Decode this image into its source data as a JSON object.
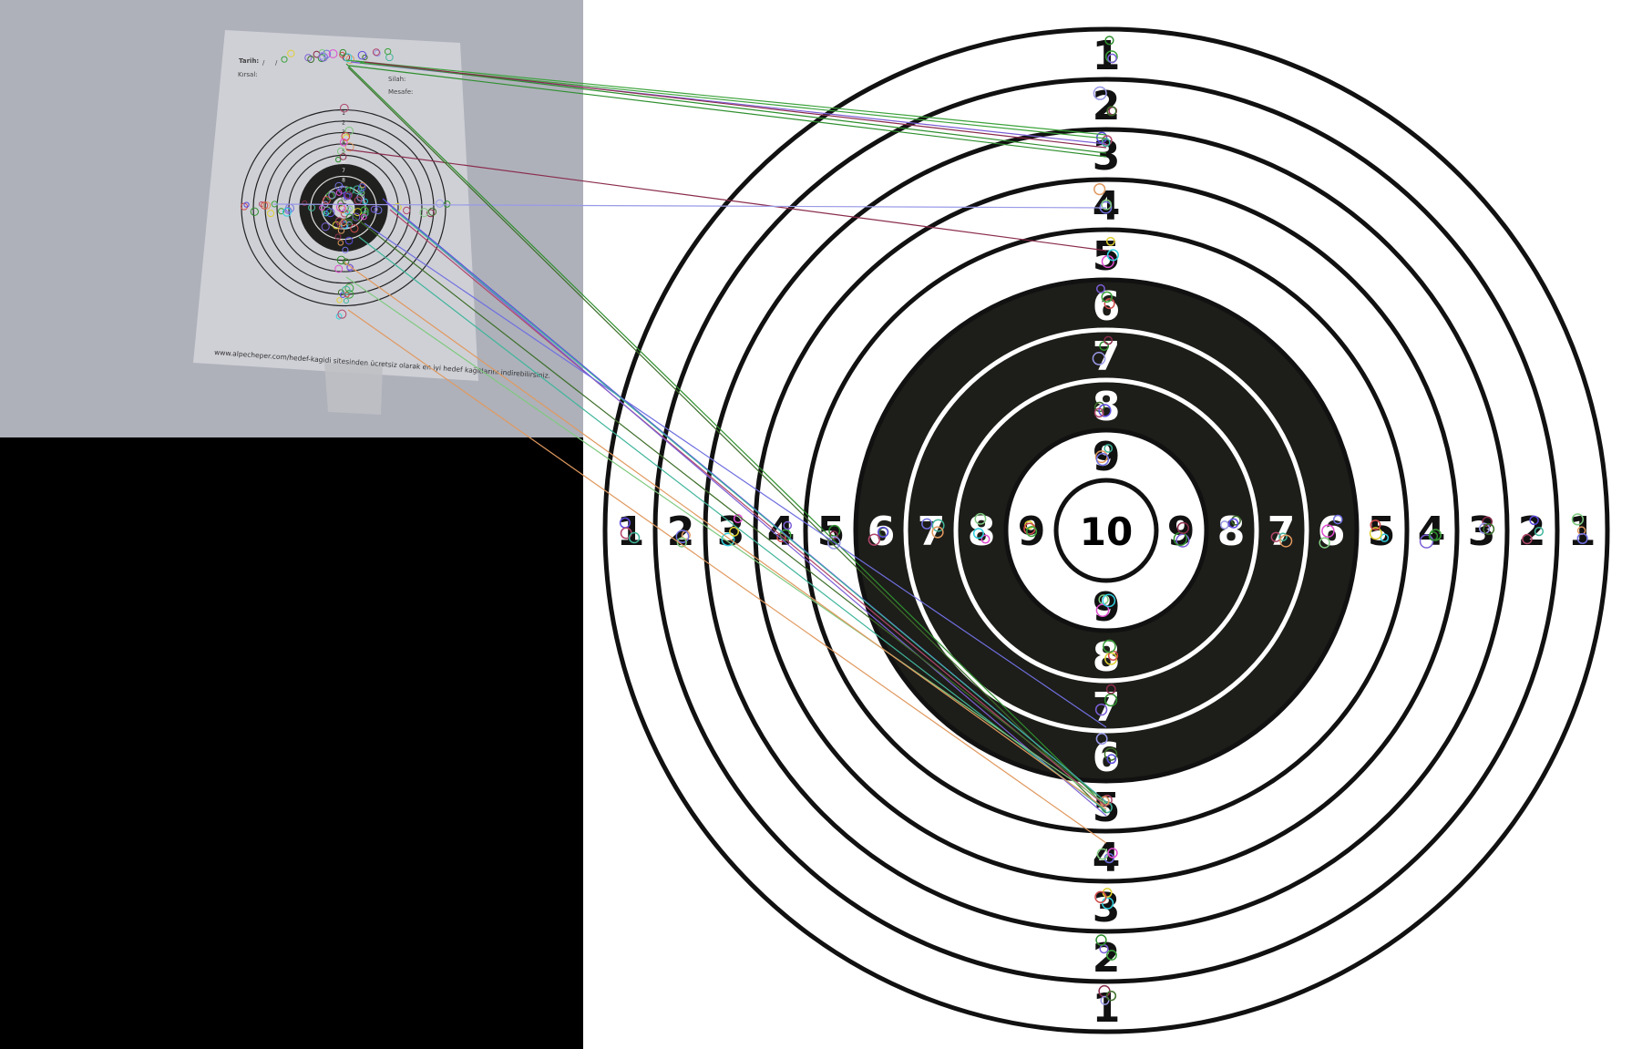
{
  "photo": {
    "header_fields": [
      "Tarih:",
      "/",
      "/",
      "Kırsal:",
      "Silah:",
      "Mesafe:"
    ],
    "footer_text": "www.alpecheper.com/hedef-kagidi sitesinden ücretsiz olarak en iyi hedef kağıtlarını indirebilirsiniz.",
    "ring_numbers": [
      "1",
      "2",
      "3",
      "4",
      "5",
      "6",
      "7",
      "8",
      "9",
      "10"
    ]
  },
  "target": {
    "top_numbers": [
      "1",
      "2",
      "3",
      "4",
      "5",
      "6",
      "7",
      "8",
      "9"
    ],
    "bottom_numbers": [
      "9",
      "8",
      "7",
      "6",
      "5",
      "4",
      "3",
      "2",
      "1"
    ],
    "left_numbers": [
      "1",
      "2",
      "3",
      "4",
      "5",
      "6",
      "7",
      "8",
      "9"
    ],
    "right_numbers": [
      "9",
      "8",
      "7",
      "6",
      "5",
      "4",
      "3",
      "2",
      "1"
    ],
    "center_label": "10"
  },
  "colors": {
    "photo_background": "#a9acb6",
    "paper": "#cfd0d6",
    "target_black": "#1d1d19",
    "ring_stroke": "#111111",
    "canvas_black": "#000000",
    "match_line_colors": [
      "#3ba23b",
      "#7b5fd6",
      "#2e8f2e",
      "#8a2c4d",
      "#9999e8",
      "#3d6e2a",
      "#5b4ae0",
      "#b0466b",
      "#3fb59b",
      "#e0995f",
      "#6f6fe0",
      "#7fc97f"
    ]
  }
}
